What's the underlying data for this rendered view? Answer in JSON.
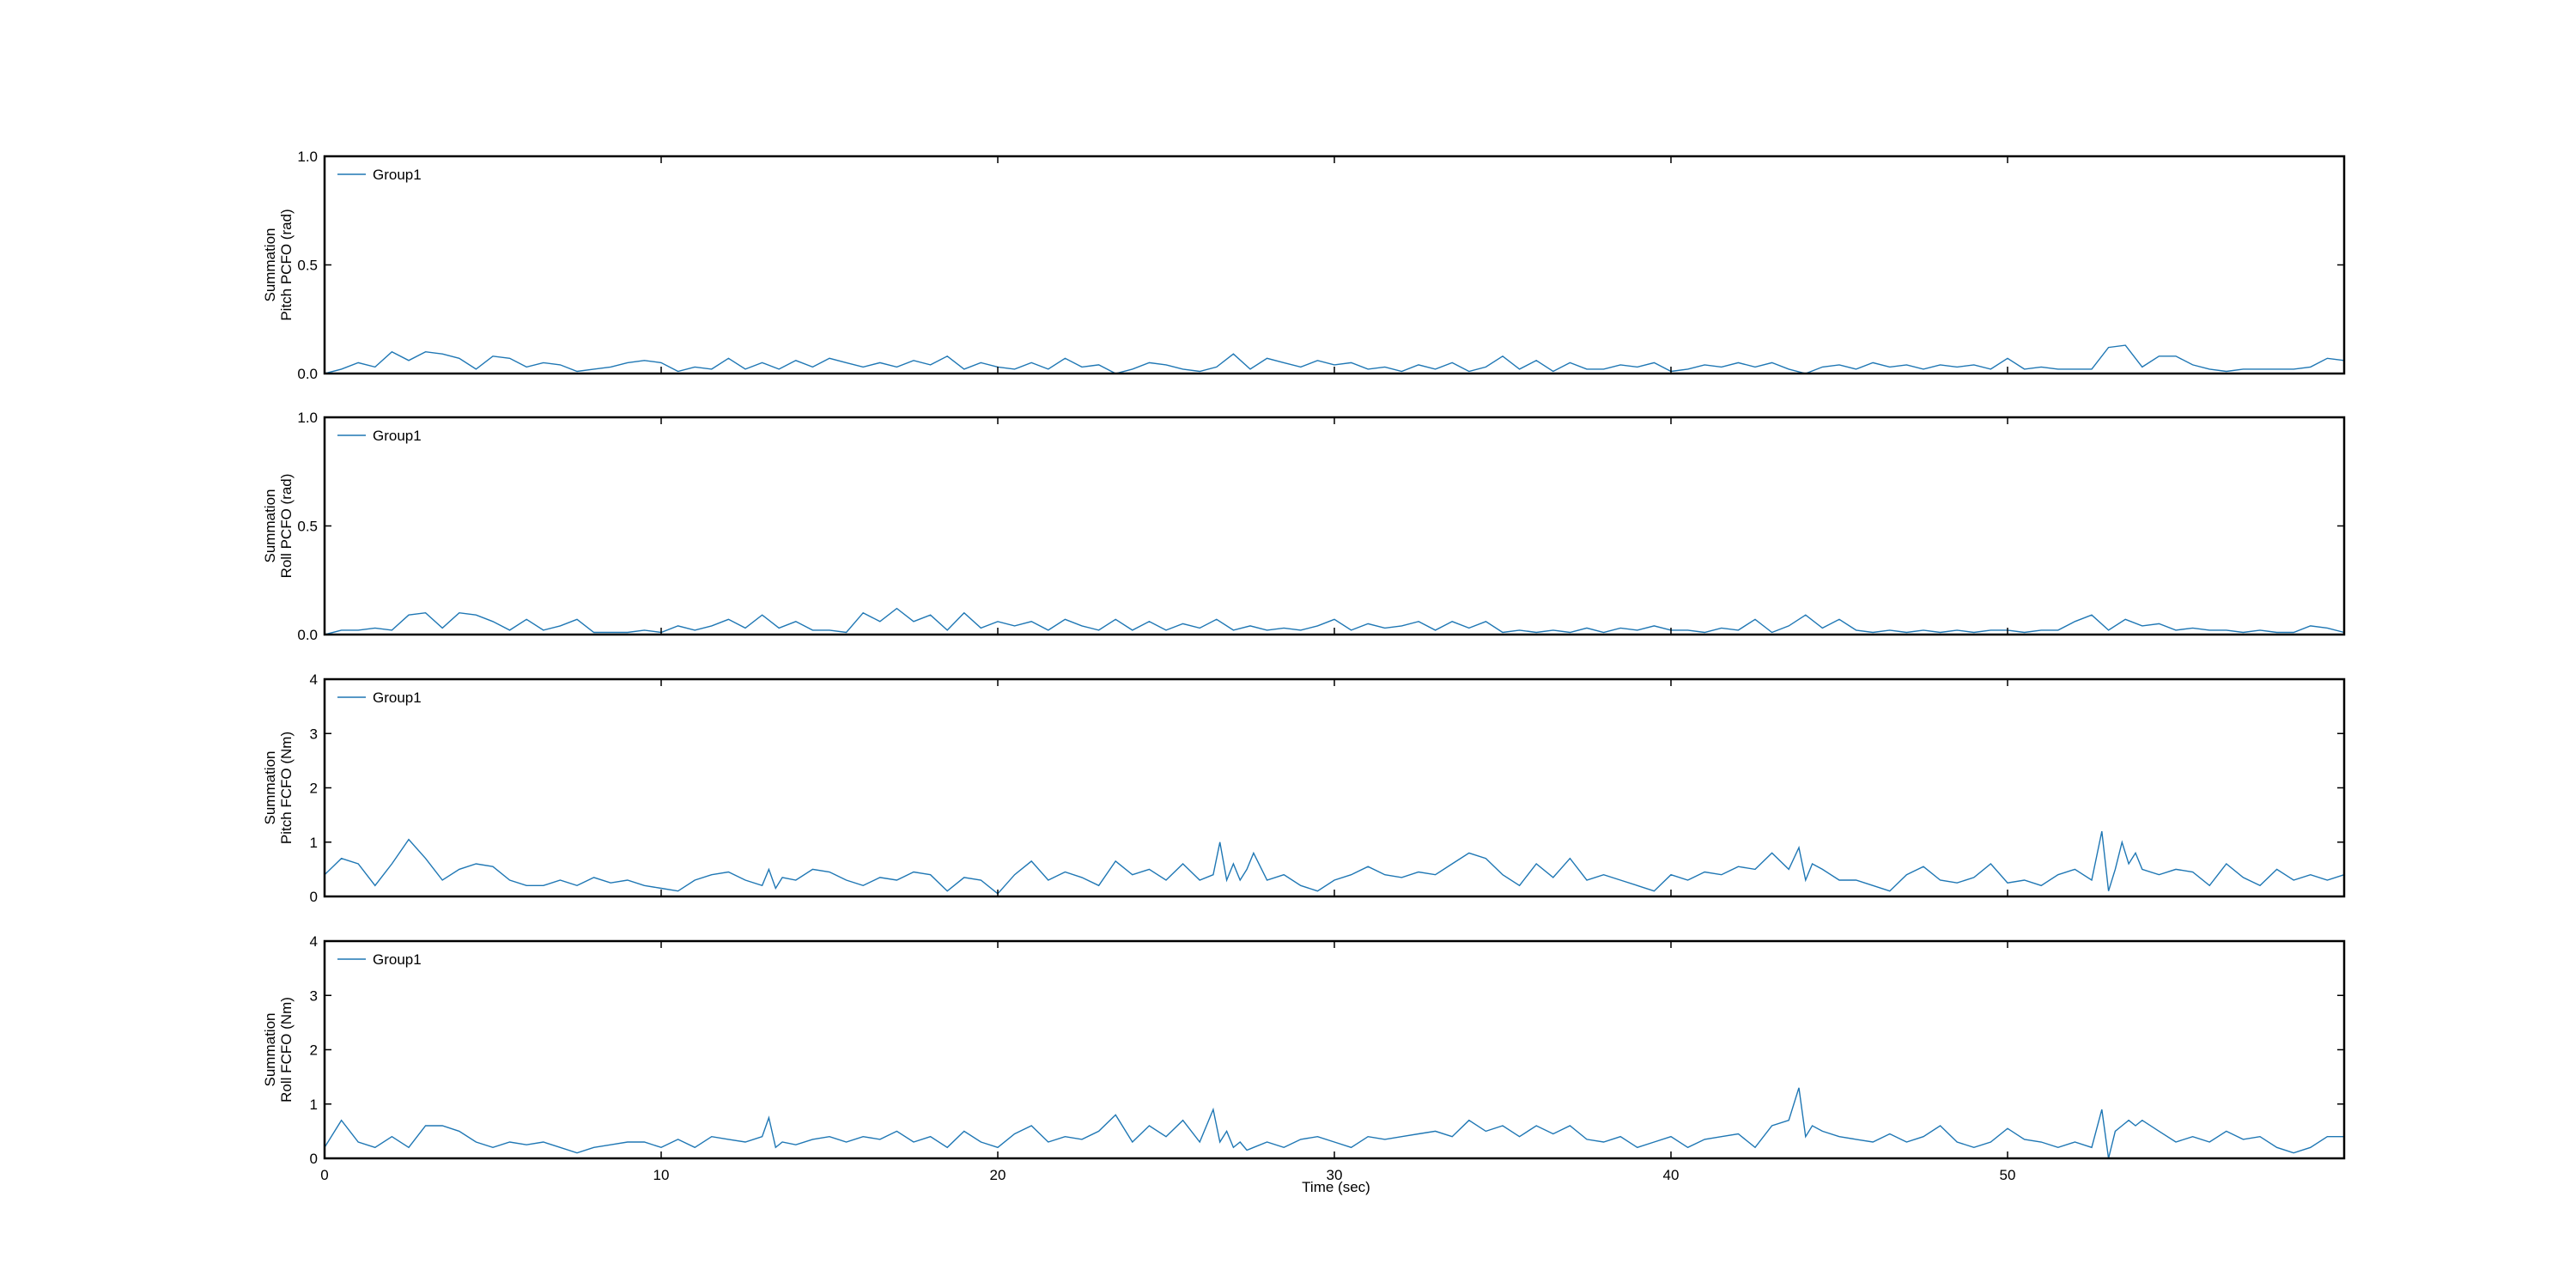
{
  "figure": {
    "xlabel": "Time (sec)",
    "line_color": "#1f77b4"
  },
  "chart_data": [
    {
      "type": "line",
      "ylabel_lines": [
        "Summation",
        "Pitch PCFO (rad)"
      ],
      "xlim": [
        0,
        60
      ],
      "ylim": [
        0,
        1.0
      ],
      "yticks": [
        "0.0",
        "0.5",
        "1.0"
      ],
      "xticks": [],
      "legend": "top-left",
      "series": [
        {
          "name": "Group1",
          "x": [
            0,
            0.5,
            1,
            1.5,
            2,
            2.5,
            3,
            3.5,
            4,
            4.5,
            5,
            5.5,
            6,
            6.5,
            7,
            7.5,
            8,
            8.5,
            9,
            9.5,
            10,
            10.5,
            11,
            11.5,
            12,
            12.5,
            13,
            13.5,
            14,
            14.5,
            15,
            15.5,
            16,
            16.5,
            17,
            17.5,
            18,
            18.5,
            19,
            19.5,
            20,
            20.5,
            21,
            21.5,
            22,
            22.5,
            23,
            23.5,
            24,
            24.5,
            25,
            25.5,
            26,
            26.5,
            27,
            27.5,
            28,
            28.5,
            29,
            29.5,
            30,
            30.5,
            31,
            31.5,
            32,
            32.5,
            33,
            33.5,
            34,
            34.5,
            35,
            35.5,
            36,
            36.5,
            37,
            37.5,
            38,
            38.5,
            39,
            39.5,
            40,
            40.5,
            41,
            41.5,
            42,
            42.5,
            43,
            43.5,
            44,
            44.5,
            45,
            45.5,
            46,
            46.5,
            47,
            47.5,
            48,
            48.5,
            49,
            49.5,
            50,
            50.5,
            51,
            51.5,
            52,
            52.5,
            53,
            53.5,
            54,
            54.5,
            55,
            55.5,
            56,
            56.5,
            57,
            57.5,
            58,
            58.5,
            59,
            59.5,
            60
          ],
          "y": [
            0.0,
            0.02,
            0.05,
            0.03,
            0.1,
            0.06,
            0.1,
            0.09,
            0.07,
            0.02,
            0.08,
            0.07,
            0.03,
            0.05,
            0.04,
            0.01,
            0.02,
            0.03,
            0.05,
            0.06,
            0.05,
            0.01,
            0.03,
            0.02,
            0.07,
            0.02,
            0.05,
            0.02,
            0.06,
            0.03,
            0.07,
            0.05,
            0.03,
            0.05,
            0.03,
            0.06,
            0.04,
            0.08,
            0.02,
            0.05,
            0.03,
            0.02,
            0.05,
            0.02,
            0.07,
            0.03,
            0.04,
            0.0,
            0.02,
            0.05,
            0.04,
            0.02,
            0.01,
            0.03,
            0.09,
            0.02,
            0.07,
            0.05,
            0.03,
            0.06,
            0.04,
            0.05,
            0.02,
            0.03,
            0.01,
            0.04,
            0.02,
            0.05,
            0.01,
            0.03,
            0.08,
            0.02,
            0.06,
            0.01,
            0.05,
            0.02,
            0.02,
            0.04,
            0.03,
            0.05,
            0.01,
            0.02,
            0.04,
            0.03,
            0.05,
            0.03,
            0.05,
            0.02,
            0.0,
            0.03,
            0.04,
            0.02,
            0.05,
            0.03,
            0.04,
            0.02,
            0.04,
            0.03,
            0.04,
            0.02,
            0.07,
            0.02,
            0.03,
            0.02,
            0.02,
            0.02,
            0.12,
            0.13,
            0.03,
            0.08,
            0.08,
            0.04,
            0.02,
            0.01,
            0.02,
            0.02,
            0.02,
            0.02,
            0.03,
            0.07,
            0.06
          ]
        }
      ]
    },
    {
      "type": "line",
      "ylabel_lines": [
        "Summation",
        "Roll PCFO (rad)"
      ],
      "xlim": [
        0,
        60
      ],
      "ylim": [
        0,
        1.0
      ],
      "yticks": [
        "0.0",
        "0.5",
        "1.0"
      ],
      "xticks": [],
      "legend": "top-left",
      "series": [
        {
          "name": "Group1",
          "x": [
            0,
            0.5,
            1,
            1.5,
            2,
            2.5,
            3,
            3.5,
            4,
            4.5,
            5,
            5.5,
            6,
            6.5,
            7,
            7.5,
            8,
            8.5,
            9,
            9.5,
            10,
            10.5,
            11,
            11.5,
            12,
            12.5,
            13,
            13.5,
            14,
            14.5,
            15,
            15.5,
            16,
            16.5,
            17,
            17.5,
            18,
            18.5,
            19,
            19.5,
            20,
            20.5,
            21,
            21.5,
            22,
            22.5,
            23,
            23.5,
            24,
            24.5,
            25,
            25.5,
            26,
            26.5,
            27,
            27.5,
            28,
            28.5,
            29,
            29.5,
            30,
            30.5,
            31,
            31.5,
            32,
            32.5,
            33,
            33.5,
            34,
            34.5,
            35,
            35.5,
            36,
            36.5,
            37,
            37.5,
            38,
            38.5,
            39,
            39.5,
            40,
            40.5,
            41,
            41.5,
            42,
            42.5,
            43,
            43.5,
            44,
            44.5,
            45,
            45.5,
            46,
            46.5,
            47,
            47.5,
            48,
            48.5,
            49,
            49.5,
            50,
            50.5,
            51,
            51.5,
            52,
            52.5,
            53,
            53.5,
            54,
            54.5,
            55,
            55.5,
            56,
            56.5,
            57,
            57.5,
            58,
            58.5,
            59,
            59.5,
            60
          ],
          "y": [
            0.0,
            0.02,
            0.02,
            0.03,
            0.02,
            0.09,
            0.1,
            0.03,
            0.1,
            0.09,
            0.06,
            0.02,
            0.07,
            0.02,
            0.04,
            0.07,
            0.01,
            0.01,
            0.01,
            0.02,
            0.01,
            0.04,
            0.02,
            0.04,
            0.07,
            0.03,
            0.09,
            0.03,
            0.06,
            0.02,
            0.02,
            0.01,
            0.1,
            0.06,
            0.12,
            0.06,
            0.09,
            0.02,
            0.1,
            0.03,
            0.06,
            0.04,
            0.06,
            0.02,
            0.07,
            0.04,
            0.02,
            0.07,
            0.02,
            0.06,
            0.02,
            0.05,
            0.03,
            0.07,
            0.02,
            0.04,
            0.02,
            0.03,
            0.02,
            0.04,
            0.07,
            0.02,
            0.05,
            0.03,
            0.04,
            0.06,
            0.02,
            0.06,
            0.03,
            0.06,
            0.01,
            0.02,
            0.01,
            0.02,
            0.01,
            0.03,
            0.01,
            0.03,
            0.02,
            0.04,
            0.02,
            0.02,
            0.01,
            0.03,
            0.02,
            0.07,
            0.01,
            0.04,
            0.09,
            0.03,
            0.07,
            0.02,
            0.01,
            0.02,
            0.01,
            0.02,
            0.01,
            0.02,
            0.01,
            0.02,
            0.02,
            0.01,
            0.02,
            0.02,
            0.06,
            0.09,
            0.02,
            0.07,
            0.04,
            0.05,
            0.02,
            0.03,
            0.02,
            0.02,
            0.01,
            0.02,
            0.01,
            0.01,
            0.04,
            0.03,
            0.01
          ]
        }
      ]
    },
    {
      "type": "line",
      "ylabel_lines": [
        "Summation",
        "Pitch FCFO (Nm)"
      ],
      "xlim": [
        0,
        60
      ],
      "ylim": [
        0,
        4
      ],
      "yticks": [
        "0",
        "1",
        "2",
        "3",
        "4"
      ],
      "xticks": [],
      "legend": "top-left",
      "series": [
        {
          "name": "Group1",
          "x": [
            0,
            0.5,
            1,
            1.5,
            2,
            2.5,
            3,
            3.5,
            4,
            4.5,
            5,
            5.5,
            6,
            6.5,
            7,
            7.5,
            8,
            8.5,
            9,
            9.5,
            10,
            10.5,
            11,
            11.5,
            12,
            12.5,
            13,
            13.2,
            13.4,
            13.6,
            14,
            14.5,
            15,
            15.5,
            16,
            16.5,
            17,
            17.5,
            18,
            18.5,
            19,
            19.5,
            20,
            20.5,
            21,
            21.5,
            22,
            22.5,
            23,
            23.5,
            24,
            24.5,
            25,
            25.5,
            26,
            26.4,
            26.6,
            26.8,
            27,
            27.2,
            27.4,
            27.6,
            28,
            28.5,
            29,
            29.5,
            30,
            30.5,
            31,
            31.5,
            32,
            32.5,
            33,
            33.5,
            34,
            34.5,
            35,
            35.5,
            36,
            36.5,
            37,
            37.5,
            38,
            38.5,
            39,
            39.5,
            40,
            40.5,
            41,
            41.5,
            42,
            42.5,
            43,
            43.5,
            43.8,
            44,
            44.2,
            44.5,
            45,
            45.5,
            46,
            46.5,
            47,
            47.5,
            48,
            48.5,
            49,
            49.5,
            50,
            50.5,
            51,
            51.5,
            52,
            52.5,
            52.8,
            53,
            53.2,
            53.4,
            53.6,
            53.8,
            54,
            54.5,
            55,
            55.5,
            56,
            56.5,
            57,
            57.5,
            58,
            58.5,
            59,
            59.5,
            60
          ],
          "y": [
            0.4,
            0.7,
            0.6,
            0.2,
            0.6,
            1.05,
            0.7,
            0.3,
            0.5,
            0.6,
            0.55,
            0.3,
            0.2,
            0.2,
            0.3,
            0.2,
            0.35,
            0.25,
            0.3,
            0.2,
            0.15,
            0.1,
            0.3,
            0.4,
            0.45,
            0.3,
            0.2,
            0.5,
            0.15,
            0.35,
            0.3,
            0.5,
            0.45,
            0.3,
            0.2,
            0.35,
            0.3,
            0.45,
            0.4,
            0.1,
            0.35,
            0.3,
            0.05,
            0.4,
            0.65,
            0.3,
            0.45,
            0.35,
            0.2,
            0.65,
            0.4,
            0.5,
            0.3,
            0.6,
            0.3,
            0.4,
            1.0,
            0.3,
            0.6,
            0.3,
            0.5,
            0.8,
            0.3,
            0.4,
            0.2,
            0.1,
            0.3,
            0.4,
            0.55,
            0.4,
            0.35,
            0.45,
            0.4,
            0.6,
            0.8,
            0.7,
            0.4,
            0.2,
            0.6,
            0.35,
            0.7,
            0.3,
            0.4,
            0.3,
            0.2,
            0.1,
            0.4,
            0.3,
            0.45,
            0.4,
            0.55,
            0.5,
            0.8,
            0.5,
            0.9,
            0.3,
            0.6,
            0.5,
            0.3,
            0.3,
            0.2,
            0.1,
            0.4,
            0.55,
            0.3,
            0.25,
            0.35,
            0.6,
            0.25,
            0.3,
            0.2,
            0.4,
            0.5,
            0.3,
            1.2,
            0.1,
            0.5,
            1.0,
            0.6,
            0.8,
            0.5,
            0.4,
            0.5,
            0.45,
            0.2,
            0.6,
            0.35,
            0.2,
            0.5,
            0.3,
            0.4,
            0.3,
            0.4
          ]
        }
      ]
    },
    {
      "type": "line",
      "ylabel_lines": [
        "Summation",
        "Roll FCFO (Nm)"
      ],
      "xlim": [
        0,
        60
      ],
      "ylim": [
        0,
        4
      ],
      "yticks": [
        "0",
        "1",
        "2",
        "3",
        "4"
      ],
      "xticks": [
        "0",
        "10",
        "20",
        "30",
        "40",
        "50"
      ],
      "xtick_values": [
        0,
        10,
        20,
        30,
        40,
        50
      ],
      "legend": "top-left",
      "series": [
        {
          "name": "Group1",
          "x": [
            0,
            0.5,
            1,
            1.5,
            2,
            2.5,
            3,
            3.5,
            4,
            4.5,
            5,
            5.5,
            6,
            6.5,
            7,
            7.5,
            8,
            8.5,
            9,
            9.5,
            10,
            10.5,
            11,
            11.5,
            12,
            12.5,
            13,
            13.2,
            13.4,
            13.6,
            14,
            14.5,
            15,
            15.5,
            16,
            16.5,
            17,
            17.5,
            18,
            18.5,
            19,
            19.5,
            20,
            20.5,
            21,
            21.5,
            22,
            22.5,
            23,
            23.5,
            24,
            24.5,
            25,
            25.5,
            26,
            26.4,
            26.6,
            26.8,
            27,
            27.2,
            27.4,
            27.6,
            28,
            28.5,
            29,
            29.5,
            30,
            30.5,
            31,
            31.5,
            32,
            32.5,
            33,
            33.5,
            34,
            34.5,
            35,
            35.5,
            36,
            36.5,
            37,
            37.5,
            38,
            38.5,
            39,
            39.5,
            40,
            40.5,
            41,
            41.5,
            42,
            42.5,
            43,
            43.5,
            43.8,
            44,
            44.2,
            44.5,
            45,
            45.5,
            46,
            46.5,
            47,
            47.5,
            48,
            48.5,
            49,
            49.5,
            50,
            50.5,
            51,
            51.5,
            52,
            52.5,
            52.8,
            53,
            53.2,
            53.4,
            53.6,
            53.8,
            54,
            54.5,
            55,
            55.5,
            56,
            56.5,
            57,
            57.5,
            58,
            58.5,
            59,
            59.5,
            60
          ],
          "y": [
            0.2,
            0.7,
            0.3,
            0.2,
            0.4,
            0.2,
            0.6,
            0.6,
            0.5,
            0.3,
            0.2,
            0.3,
            0.25,
            0.3,
            0.2,
            0.1,
            0.2,
            0.25,
            0.3,
            0.3,
            0.2,
            0.35,
            0.2,
            0.4,
            0.35,
            0.3,
            0.4,
            0.75,
            0.2,
            0.3,
            0.25,
            0.35,
            0.4,
            0.3,
            0.4,
            0.35,
            0.5,
            0.3,
            0.4,
            0.2,
            0.5,
            0.3,
            0.2,
            0.45,
            0.6,
            0.3,
            0.4,
            0.35,
            0.5,
            0.8,
            0.3,
            0.6,
            0.4,
            0.7,
            0.3,
            0.9,
            0.3,
            0.5,
            0.2,
            0.3,
            0.15,
            0.2,
            0.3,
            0.2,
            0.35,
            0.4,
            0.3,
            0.2,
            0.4,
            0.35,
            0.4,
            0.45,
            0.5,
            0.4,
            0.7,
            0.5,
            0.6,
            0.4,
            0.6,
            0.45,
            0.6,
            0.35,
            0.3,
            0.4,
            0.2,
            0.3,
            0.4,
            0.2,
            0.35,
            0.4,
            0.45,
            0.2,
            0.6,
            0.7,
            1.3,
            0.4,
            0.6,
            0.5,
            0.4,
            0.35,
            0.3,
            0.45,
            0.3,
            0.4,
            0.6,
            0.3,
            0.2,
            0.3,
            0.55,
            0.35,
            0.3,
            0.2,
            0.3,
            0.2,
            0.9,
            0.0,
            0.5,
            0.6,
            0.7,
            0.6,
            0.7,
            0.5,
            0.3,
            0.4,
            0.3,
            0.5,
            0.35,
            0.4,
            0.2,
            0.1,
            0.2,
            0.4,
            0.4
          ]
        }
      ]
    }
  ]
}
